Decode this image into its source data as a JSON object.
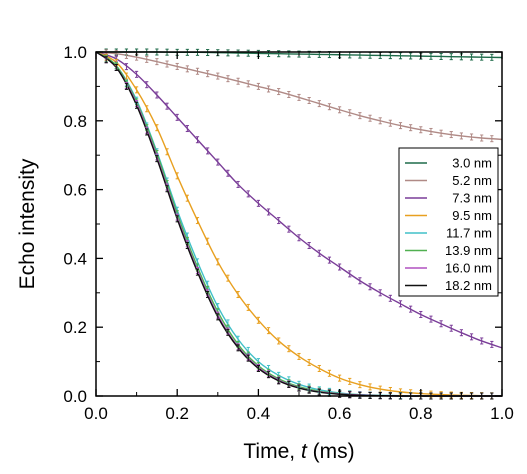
{
  "chart_data": {
    "type": "line",
    "xlabel": "Time, ",
    "xlabel_var": "t",
    "xlabel_unit": " (ms)",
    "ylabel": "Echo intensity",
    "xlim": [
      0,
      1.0
    ],
    "ylim": [
      0,
      1.0
    ],
    "xticks": [
      "0.0",
      "0.2",
      "0.4",
      "0.6",
      "0.8",
      "1.0"
    ],
    "yticks": [
      "0.0",
      "0.2",
      "0.4",
      "0.6",
      "0.8",
      "1.0"
    ],
    "grid": false,
    "legend_position": "right",
    "series": [
      {
        "name": "3.0 nm",
        "color": "#1f6b4a",
        "x": [
          0,
          0.05,
          0.1,
          0.15,
          0.2,
          0.25,
          0.3,
          0.35,
          0.4,
          0.45,
          0.5,
          0.55,
          0.6,
          0.65,
          0.7,
          0.75,
          0.8,
          0.85,
          0.9,
          0.95,
          1.0
        ],
        "values": [
          1.0,
          1.0,
          1.0,
          1.0,
          0.999,
          0.999,
          0.998,
          0.997,
          0.996,
          0.995,
          0.994,
          0.993,
          0.992,
          0.991,
          0.99,
          0.989,
          0.988,
          0.987,
          0.986,
          0.985,
          0.984
        ]
      },
      {
        "name": "5.2 nm",
        "color": "#b08a86",
        "x": [
          0,
          0.05,
          0.1,
          0.15,
          0.2,
          0.25,
          0.3,
          0.35,
          0.4,
          0.45,
          0.5,
          0.55,
          0.6,
          0.65,
          0.7,
          0.75,
          0.8,
          0.85,
          0.9,
          0.95,
          1.0
        ],
        "values": [
          1.0,
          0.995,
          0.985,
          0.972,
          0.958,
          0.944,
          0.93,
          0.915,
          0.9,
          0.885,
          0.868,
          0.85,
          0.832,
          0.815,
          0.8,
          0.786,
          0.774,
          0.764,
          0.756,
          0.75,
          0.746
        ]
      },
      {
        "name": "7.3 nm",
        "color": "#7a3d98",
        "x": [
          0,
          0.05,
          0.1,
          0.15,
          0.2,
          0.25,
          0.3,
          0.35,
          0.4,
          0.45,
          0.5,
          0.55,
          0.6,
          0.65,
          0.7,
          0.75,
          0.8,
          0.85,
          0.9,
          0.95,
          1.0
        ],
        "values": [
          1.0,
          0.98,
          0.935,
          0.875,
          0.81,
          0.745,
          0.68,
          0.615,
          0.56,
          0.51,
          0.46,
          0.415,
          0.375,
          0.335,
          0.3,
          0.268,
          0.237,
          0.21,
          0.184,
          0.16,
          0.14
        ]
      },
      {
        "name": "9.5 nm",
        "color": "#e8a020",
        "x": [
          0,
          0.05,
          0.1,
          0.15,
          0.2,
          0.25,
          0.3,
          0.35,
          0.4,
          0.45,
          0.5,
          0.55,
          0.6,
          0.65,
          0.7,
          0.75,
          0.8,
          0.85,
          0.9,
          0.95,
          1.0
        ],
        "values": [
          1.0,
          0.97,
          0.89,
          0.78,
          0.64,
          0.51,
          0.39,
          0.295,
          0.22,
          0.16,
          0.115,
          0.08,
          0.052,
          0.033,
          0.02,
          0.012,
          0.007,
          0.004,
          0.002,
          0.001,
          0.0
        ]
      },
      {
        "name": "11.7 nm",
        "color": "#40c0c8",
        "x": [
          0,
          0.05,
          0.1,
          0.15,
          0.2,
          0.25,
          0.3,
          0.35,
          0.4,
          0.45,
          0.5,
          0.55,
          0.6,
          0.65,
          0.7,
          0.75,
          0.8,
          0.85,
          0.9,
          0.95,
          1.0
        ],
        "values": [
          1.0,
          0.96,
          0.86,
          0.71,
          0.54,
          0.39,
          0.26,
          0.165,
          0.1,
          0.06,
          0.034,
          0.018,
          0.009,
          0.004,
          0.002,
          0.001,
          0.0,
          0.0,
          0.0,
          0.0,
          0.0
        ]
      },
      {
        "name": "13.9 nm",
        "color": "#50b050",
        "x": [
          0,
          0.05,
          0.1,
          0.15,
          0.2,
          0.25,
          0.3,
          0.35,
          0.4,
          0.45,
          0.5,
          0.55,
          0.6,
          0.65,
          0.7,
          0.75,
          0.8,
          0.85,
          0.9,
          0.95,
          1.0
        ],
        "values": [
          1.0,
          0.96,
          0.855,
          0.705,
          0.53,
          0.375,
          0.245,
          0.15,
          0.088,
          0.05,
          0.027,
          0.014,
          0.007,
          0.003,
          0.001,
          0.0,
          0.0,
          0.0,
          0.0,
          0.0,
          0.0
        ]
      },
      {
        "name": "16.0 nm",
        "color": "#b050c0",
        "x": [
          0,
          0.05,
          0.1,
          0.15,
          0.2,
          0.25,
          0.3,
          0.35,
          0.4,
          0.45,
          0.5,
          0.55,
          0.6,
          0.65,
          0.7,
          0.75,
          0.8,
          0.85,
          0.9,
          0.95,
          1.0
        ],
        "values": [
          1.0,
          0.955,
          0.85,
          0.695,
          0.52,
          0.365,
          0.235,
          0.143,
          0.083,
          0.046,
          0.024,
          0.012,
          0.006,
          0.003,
          0.001,
          0.0,
          0.0,
          0.0,
          0.0,
          0.0,
          0.0
        ]
      },
      {
        "name": "18.2 nm",
        "color": "#111111",
        "x": [
          0,
          0.05,
          0.1,
          0.15,
          0.2,
          0.25,
          0.3,
          0.35,
          0.4,
          0.45,
          0.5,
          0.55,
          0.6,
          0.65,
          0.7,
          0.75,
          0.8,
          0.85,
          0.9,
          0.95,
          1.0
        ],
        "values": [
          1.0,
          0.955,
          0.845,
          0.69,
          0.515,
          0.36,
          0.23,
          0.14,
          0.08,
          0.044,
          0.023,
          0.011,
          0.005,
          0.002,
          0.001,
          0.0,
          0.0,
          0.0,
          0.0,
          0.0,
          0.0
        ]
      }
    ]
  }
}
